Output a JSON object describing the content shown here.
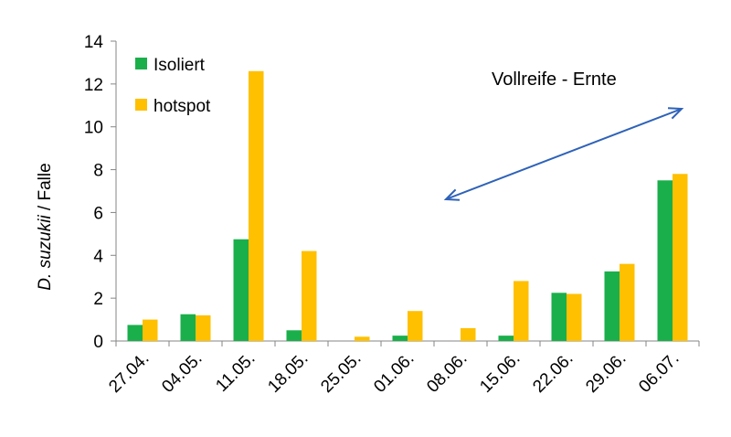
{
  "chart_data": {
    "type": "bar",
    "categories": [
      "27.04.",
      "04.05.",
      "11.05.",
      "18.05.",
      "25.05.",
      "01.06.",
      "08.06.",
      "15.06.",
      "22.06.",
      "29.06.",
      "06.07."
    ],
    "series": [
      {
        "name": "Isoliert",
        "color": "#1aaf4b",
        "values": [
          0.75,
          1.25,
          4.75,
          0.5,
          0,
          0.25,
          0,
          0.25,
          2.25,
          3.25,
          7.5
        ]
      },
      {
        "name": "hotspot",
        "color": "#ffc000",
        "values": [
          1.0,
          1.2,
          12.6,
          4.2,
          0.2,
          1.4,
          0.6,
          2.8,
          2.2,
          3.6,
          7.8
        ]
      }
    ],
    "ylabel_italic": "D. suzukii",
    "ylabel_rest": " / Falle",
    "ylim": [
      0,
      14
    ],
    "yticks": [
      0,
      2,
      4,
      6,
      8,
      10,
      12,
      14
    ],
    "grid": false,
    "legend_position": "top-left",
    "annotation": {
      "text": "Vollreife - Ernte",
      "arrow_color": "#2e62b8",
      "arrow": "double-headed"
    }
  }
}
